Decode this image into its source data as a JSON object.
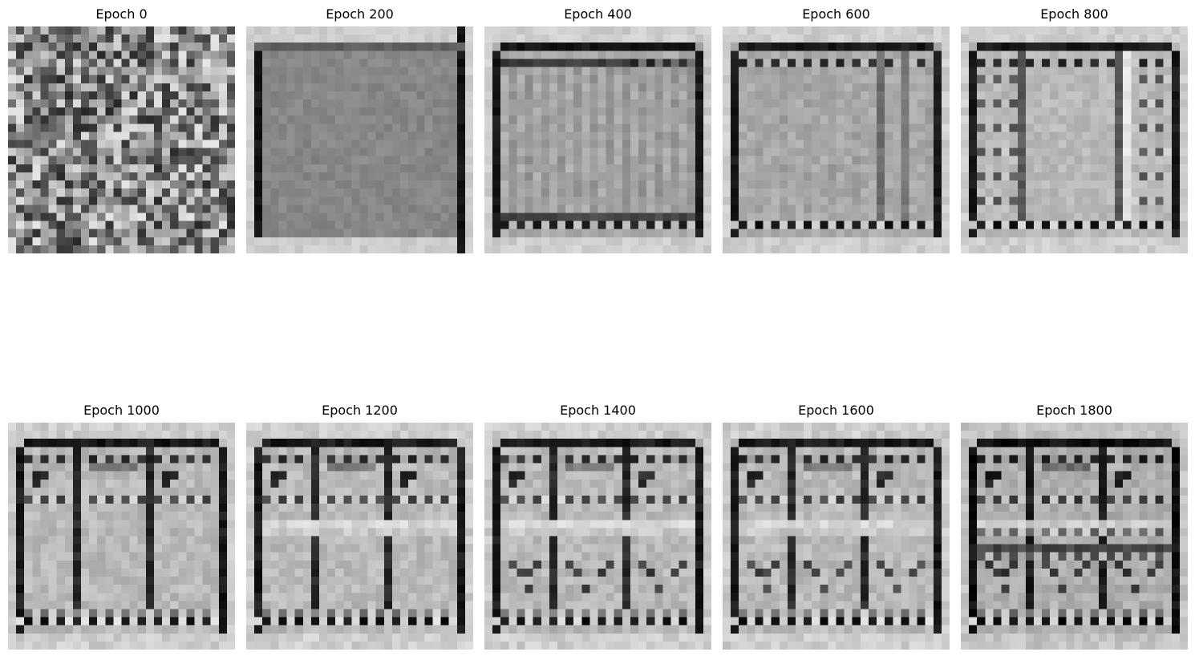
{
  "figure": {
    "panels": [
      {
        "title": "Epoch 0",
        "stage": 0
      },
      {
        "title": "Epoch 200",
        "stage": 1
      },
      {
        "title": "Epoch 400",
        "stage": 2
      },
      {
        "title": "Epoch 600",
        "stage": 3
      },
      {
        "title": "Epoch 800",
        "stage": 4
      },
      {
        "title": "Epoch 1000",
        "stage": 5
      },
      {
        "title": "Epoch 1200",
        "stage": 6
      },
      {
        "title": "Epoch 1400",
        "stage": 7
      },
      {
        "title": "Epoch 1600",
        "stage": 8
      },
      {
        "title": "Epoch 1800",
        "stage": 9
      }
    ],
    "colormap": "grayscale"
  }
}
